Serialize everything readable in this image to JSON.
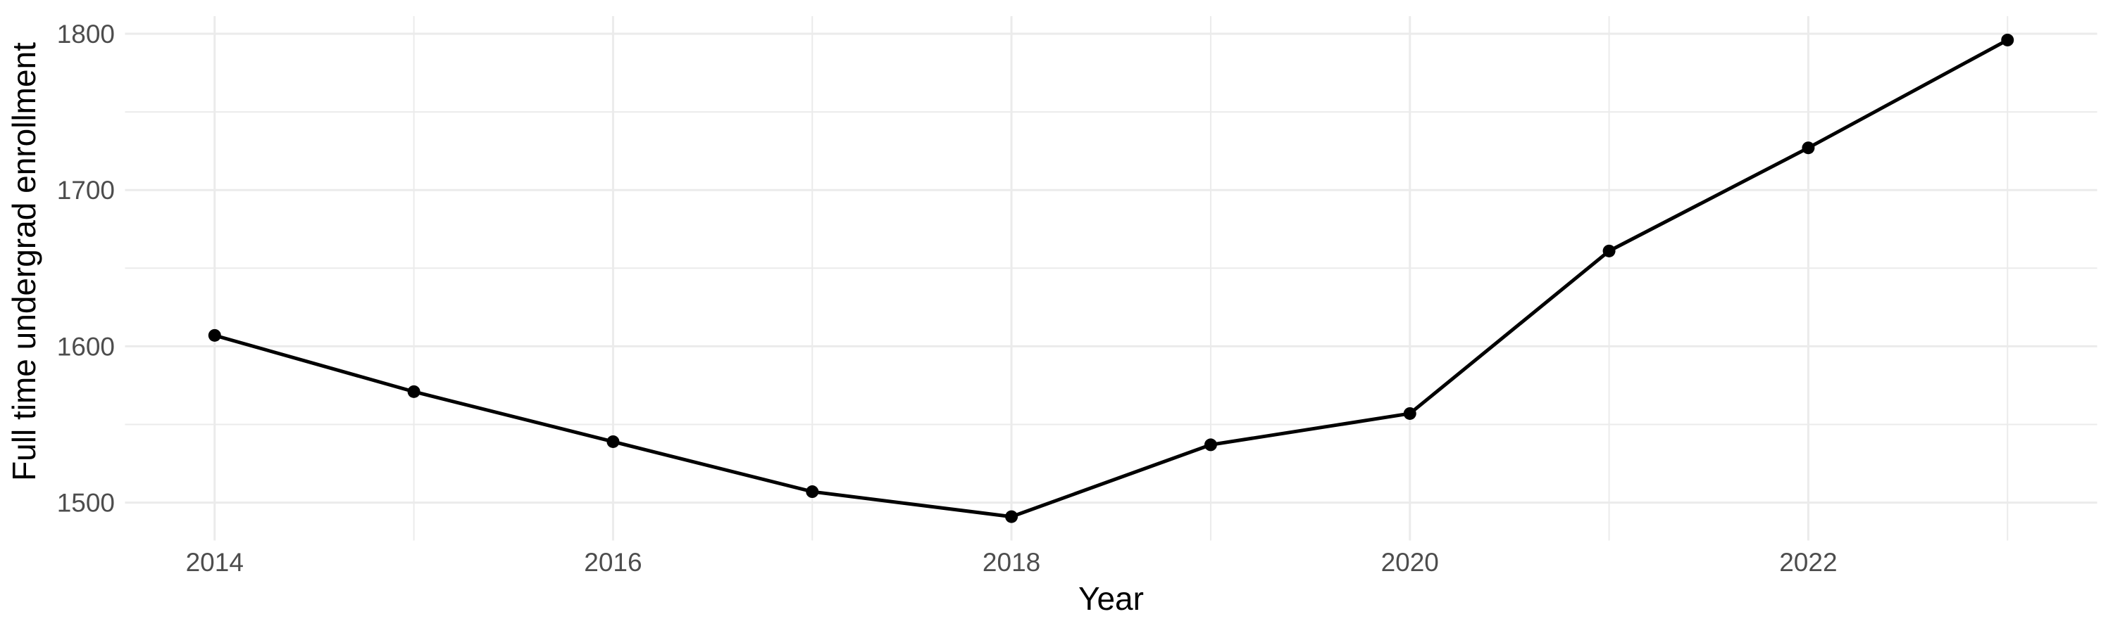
{
  "chart_data": {
    "type": "line",
    "title": "",
    "xlabel": "Year",
    "ylabel": "Full time undergrad enrollment",
    "x": [
      2014,
      2015,
      2016,
      2017,
      2018,
      2019,
      2020,
      2021,
      2022,
      2023
    ],
    "series": [
      {
        "name": "Full time undergrad enrollment",
        "values": [
          1607,
          1571,
          1539,
          1507,
          1491,
          1537,
          1557,
          1661,
          1727,
          1796
        ]
      }
    ],
    "x_tick_labels": [
      "2014",
      "2016",
      "2018",
      "2020",
      "2022"
    ],
    "x_ticks": [
      2014,
      2016,
      2018,
      2020,
      2022
    ],
    "x_minor_ticks": [
      2015,
      2017,
      2019,
      2021,
      2023
    ],
    "y_tick_labels": [
      "1500",
      "1600",
      "1700",
      "1800"
    ],
    "y_ticks": [
      1500,
      1600,
      1700,
      1800
    ],
    "y_minor_ticks": [
      1550,
      1650,
      1750
    ],
    "xlim": [
      2013.55,
      2023.45
    ],
    "ylim": [
      1475.75,
      1811.25
    ],
    "grid": true,
    "legend": false,
    "colors": {
      "line": "#000000",
      "point": "#000000",
      "grid": "#EBEBEB",
      "tick_label": "#4D4D4D",
      "axis_title": "#000000",
      "background": "#FFFFFF"
    }
  }
}
